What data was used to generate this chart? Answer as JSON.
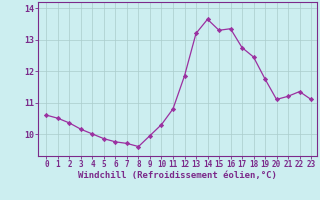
{
  "x": [
    0,
    1,
    2,
    3,
    4,
    5,
    6,
    7,
    8,
    9,
    10,
    11,
    12,
    13,
    14,
    15,
    16,
    17,
    18,
    19,
    20,
    21,
    22,
    23
  ],
  "y": [
    10.6,
    10.5,
    10.35,
    10.15,
    10.0,
    9.85,
    9.75,
    9.7,
    9.6,
    9.95,
    10.3,
    10.8,
    11.85,
    13.2,
    13.65,
    13.3,
    13.35,
    12.75,
    12.45,
    11.75,
    11.1,
    11.2,
    11.35,
    11.1
  ],
  "line_color": "#9b30a0",
  "marker": "D",
  "markersize": 2.2,
  "bg_color": "#cceef0",
  "grid_color": "#aacccc",
  "axis_color": "#7b2a8a",
  "xlabel": "Windchill (Refroidissement éolien,°C)",
  "xlabel_fontsize": 6.5,
  "tick_fontsize": 5.5,
  "ylim": [
    9.3,
    14.2
  ],
  "yticks": [
    10,
    11,
    12,
    13,
    14
  ],
  "xticks": [
    0,
    1,
    2,
    3,
    4,
    5,
    6,
    7,
    8,
    9,
    10,
    11,
    12,
    13,
    14,
    15,
    16,
    17,
    18,
    19,
    20,
    21,
    22,
    23
  ]
}
